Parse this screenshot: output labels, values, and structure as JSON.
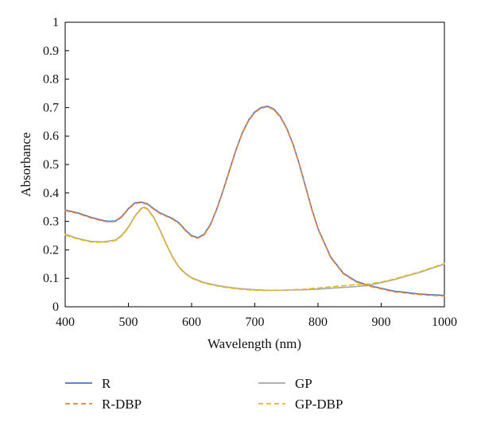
{
  "chart_data": {
    "type": "line",
    "title": "",
    "xlabel": "Wavelength (nm)",
    "ylabel": "Absorbance",
    "xlim": [
      400,
      1000
    ],
    "ylim": [
      0,
      1
    ],
    "xticks": [
      400,
      500,
      600,
      700,
      800,
      900,
      1000
    ],
    "yticks": [
      0,
      0.1,
      0.2,
      0.3,
      0.4,
      0.5,
      0.6,
      0.7,
      0.8,
      0.9,
      1
    ],
    "ytick_labels": [
      "0",
      "0.1",
      "0.2",
      "0.3",
      "0.4",
      "0.5",
      "0.6",
      "0.7",
      "0.8",
      "0.9",
      "1"
    ],
    "grid": false,
    "legend_position": "bottom",
    "series": [
      {
        "name": "R",
        "color": "#4472c4",
        "dash": "solid",
        "x": [
          400,
          420,
          440,
          460,
          470,
          480,
          490,
          500,
          510,
          520,
          530,
          540,
          550,
          560,
          570,
          580,
          590,
          600,
          610,
          620,
          630,
          640,
          650,
          660,
          670,
          680,
          690,
          700,
          710,
          720,
          730,
          740,
          750,
          760,
          770,
          780,
          790,
          800,
          820,
          840,
          860,
          880,
          900,
          920,
          940,
          960,
          980,
          1000
        ],
        "y": [
          0.34,
          0.33,
          0.315,
          0.303,
          0.3,
          0.302,
          0.318,
          0.345,
          0.365,
          0.368,
          0.362,
          0.345,
          0.33,
          0.32,
          0.31,
          0.295,
          0.27,
          0.25,
          0.243,
          0.255,
          0.29,
          0.345,
          0.41,
          0.48,
          0.55,
          0.61,
          0.655,
          0.685,
          0.7,
          0.705,
          0.695,
          0.67,
          0.63,
          0.575,
          0.505,
          0.425,
          0.345,
          0.275,
          0.175,
          0.118,
          0.09,
          0.075,
          0.065,
          0.055,
          0.05,
          0.045,
          0.042,
          0.04
        ]
      },
      {
        "name": "R-DBP",
        "color": "#e8823a",
        "dash": "dashed",
        "x": [
          400,
          420,
          440,
          460,
          470,
          480,
          490,
          500,
          510,
          520,
          530,
          540,
          550,
          560,
          570,
          580,
          590,
          600,
          610,
          620,
          630,
          640,
          650,
          660,
          670,
          680,
          690,
          700,
          710,
          720,
          730,
          740,
          750,
          760,
          770,
          780,
          790,
          800,
          820,
          840,
          860,
          880,
          900,
          920,
          940,
          960,
          980,
          1000
        ],
        "y": [
          0.338,
          0.328,
          0.313,
          0.301,
          0.298,
          0.3,
          0.316,
          0.343,
          0.363,
          0.366,
          0.36,
          0.343,
          0.328,
          0.318,
          0.308,
          0.293,
          0.268,
          0.248,
          0.241,
          0.253,
          0.288,
          0.343,
          0.408,
          0.478,
          0.548,
          0.608,
          0.653,
          0.683,
          0.698,
          0.703,
          0.693,
          0.668,
          0.628,
          0.573,
          0.503,
          0.423,
          0.343,
          0.273,
          0.173,
          0.116,
          0.088,
          0.073,
          0.063,
          0.053,
          0.048,
          0.043,
          0.04,
          0.038
        ]
      },
      {
        "name": "GP",
        "color": "#a6a6a6",
        "dash": "solid",
        "x": [
          400,
          420,
          440,
          460,
          480,
          490,
          500,
          510,
          520,
          525,
          530,
          540,
          550,
          560,
          570,
          580,
          590,
          600,
          620,
          640,
          660,
          680,
          700,
          720,
          740,
          760,
          780,
          800,
          820,
          840,
          860,
          880,
          900,
          920,
          940,
          960,
          980,
          1000
        ],
        "y": [
          0.255,
          0.24,
          0.23,
          0.228,
          0.235,
          0.252,
          0.28,
          0.318,
          0.345,
          0.35,
          0.345,
          0.315,
          0.27,
          0.22,
          0.175,
          0.14,
          0.118,
          0.102,
          0.085,
          0.075,
          0.068,
          0.063,
          0.06,
          0.058,
          0.058,
          0.059,
          0.06,
          0.062,
          0.065,
          0.068,
          0.071,
          0.075,
          0.085,
          0.095,
          0.108,
          0.12,
          0.135,
          0.15
        ]
      },
      {
        "name": "GP-DBP",
        "color": "#e6b822",
        "dash": "dashed",
        "x": [
          400,
          420,
          440,
          460,
          480,
          490,
          500,
          510,
          520,
          525,
          530,
          540,
          550,
          560,
          570,
          580,
          590,
          600,
          620,
          640,
          660,
          680,
          700,
          720,
          740,
          760,
          780,
          800,
          820,
          840,
          860,
          880,
          900,
          920,
          940,
          960,
          980,
          1000
        ],
        "y": [
          0.252,
          0.238,
          0.228,
          0.226,
          0.233,
          0.25,
          0.278,
          0.316,
          0.343,
          0.348,
          0.343,
          0.313,
          0.268,
          0.218,
          0.173,
          0.138,
          0.116,
          0.1,
          0.083,
          0.073,
          0.066,
          0.061,
          0.058,
          0.057,
          0.058,
          0.06,
          0.062,
          0.066,
          0.07,
          0.074,
          0.078,
          0.08,
          0.087,
          0.097,
          0.11,
          0.122,
          0.137,
          0.152
        ]
      }
    ]
  }
}
